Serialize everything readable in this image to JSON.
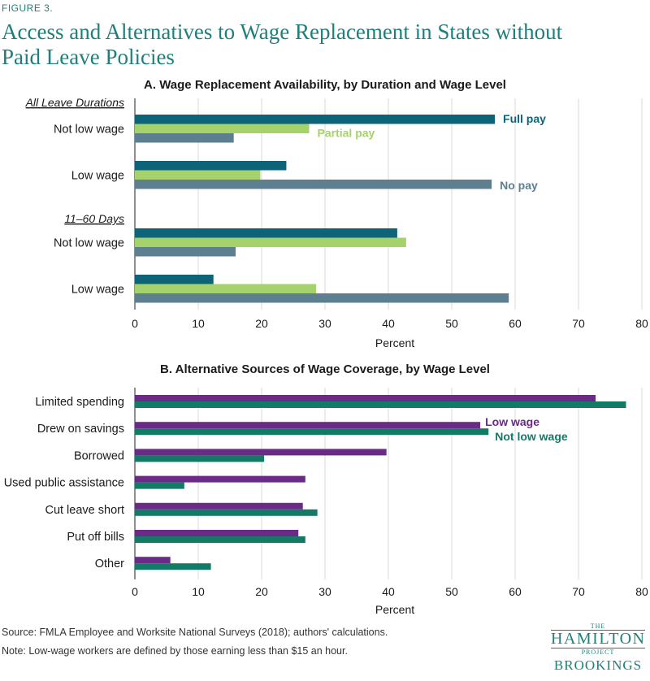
{
  "figure_label": "FIGURE 3.",
  "title": "Access and Alternatives to Wage Replacement in States without Paid Leave Policies",
  "footer": {
    "source": "Source:  FMLA Employee and Worksite National Surveys (2018); authors' calculations.",
    "note": "Note: Low-wage workers are defined by those earning less than $15 an hour."
  },
  "logo": {
    "the": "THE",
    "hamilton": "HAMILTON",
    "project": "PROJECT",
    "brookings": "BROOKINGS"
  },
  "colors": {
    "full_pay": "#0d6378",
    "partial_pay": "#a6d26b",
    "no_pay": "#5e7f8f",
    "low_wage": "#6a2a86",
    "not_low_wage": "#137a66",
    "accent": "#1f7f7a"
  },
  "chart_data": [
    {
      "type": "bar",
      "orientation": "horizontal",
      "title": "A. Wage Replacement Availability, by Duration and Wage Level",
      "xlabel": "Percent",
      "xlim": [
        0,
        80
      ],
      "xticks": [
        0,
        10,
        20,
        30,
        40,
        50,
        60,
        70,
        80
      ],
      "grid": true,
      "groups": [
        "All Leave Durations",
        "11–60 Days"
      ],
      "categories": [
        "Not low wage",
        "Low wage",
        "Not low wage",
        "Low wage"
      ],
      "category_groups": [
        0,
        0,
        1,
        1
      ],
      "series": [
        {
          "name": "Full pay",
          "color": "#0d6378",
          "values": [
            56.8,
            23.9,
            41.4,
            12.4
          ]
        },
        {
          "name": "Partial pay",
          "color": "#a6d26b",
          "values": [
            27.5,
            19.8,
            42.8,
            28.6
          ]
        },
        {
          "name": "No pay",
          "color": "#5e7f8f",
          "values": [
            15.6,
            56.3,
            15.9,
            59.0
          ]
        }
      ]
    },
    {
      "type": "bar",
      "orientation": "horizontal",
      "title": "B. Alternative Sources of Wage Coverage, by Wage Level",
      "xlabel": "Percent",
      "xlim": [
        0,
        80
      ],
      "xticks": [
        0,
        10,
        20,
        30,
        40,
        50,
        60,
        70,
        80
      ],
      "grid": true,
      "categories": [
        "Limited spending",
        "Drew on savings",
        "Borrowed",
        "Used public assistance",
        "Cut leave short",
        "Put off bills",
        "Other"
      ],
      "series": [
        {
          "name": "Low wage",
          "color": "#6a2a86",
          "values": [
            72.7,
            54.5,
            39.7,
            26.9,
            26.5,
            25.8,
            5.6
          ]
        },
        {
          "name": "Not low wage",
          "color": "#137a66",
          "values": [
            77.5,
            55.8,
            20.4,
            7.8,
            28.8,
            26.9,
            12.0
          ]
        }
      ]
    }
  ]
}
